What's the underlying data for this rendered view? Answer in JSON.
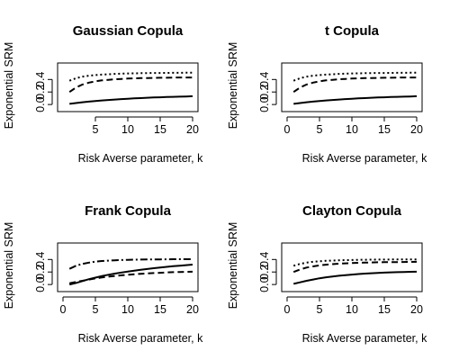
{
  "chart_data": [
    {
      "type": "line",
      "title": "Gaussian Copula",
      "xlabel": "Risk Averse parameter, k",
      "ylabel": "Exponential SRM",
      "xlim": [
        1,
        20
      ],
      "ylim": [
        0,
        0.6
      ],
      "xticks": [
        "5",
        "10",
        "15",
        "20"
      ],
      "yticks": [
        "0.0",
        "0.2",
        "0.4"
      ],
      "grid": false,
      "series": [
        {
          "style": "solid",
          "x": [
            1,
            2,
            3,
            4,
            5,
            6,
            7,
            8,
            9,
            10,
            11,
            12,
            13,
            14,
            15,
            16,
            17,
            18,
            19,
            20
          ],
          "values": [
            0.01,
            0.024,
            0.036,
            0.047,
            0.056,
            0.065,
            0.073,
            0.08,
            0.087,
            0.093,
            0.098,
            0.103,
            0.108,
            0.112,
            0.116,
            0.12,
            0.123,
            0.126,
            0.129,
            0.132
          ]
        },
        {
          "style": "dashed",
          "x": [
            1,
            2,
            3,
            4,
            5,
            6,
            7,
            8,
            9,
            10,
            11,
            12,
            13,
            14,
            15,
            16,
            17,
            18,
            19,
            20
          ],
          "values": [
            0.2,
            0.27,
            0.32,
            0.35,
            0.37,
            0.385,
            0.395,
            0.403,
            0.409,
            0.414,
            0.418,
            0.421,
            0.423,
            0.425,
            0.427,
            0.428,
            0.43,
            0.431,
            0.432,
            0.432
          ]
        },
        {
          "style": "dotted",
          "x": [
            1,
            2,
            3,
            4,
            5,
            6,
            7,
            8,
            9,
            10,
            11,
            12,
            13,
            14,
            15,
            16,
            17,
            18,
            19,
            20
          ],
          "values": [
            0.38,
            0.42,
            0.445,
            0.46,
            0.47,
            0.478,
            0.484,
            0.489,
            0.493,
            0.496,
            0.498,
            0.5,
            0.502,
            0.503,
            0.504,
            0.505,
            0.506,
            0.507,
            0.508,
            0.508
          ]
        }
      ]
    },
    {
      "type": "line",
      "title": "t Copula",
      "xlabel": "Risk Averse parameter, k",
      "ylabel": "Exponential SRM",
      "xlim": [
        0,
        20
      ],
      "ylim": [
        0,
        0.6
      ],
      "xticks": [
        "0",
        "5",
        "10",
        "15",
        "20"
      ],
      "yticks": [
        "0.0",
        "0.2",
        "0.4"
      ],
      "grid": false,
      "series": [
        {
          "style": "solid",
          "x": [
            1,
            2,
            3,
            4,
            5,
            6,
            7,
            8,
            9,
            10,
            11,
            12,
            13,
            14,
            15,
            16,
            17,
            18,
            19,
            20
          ],
          "values": [
            0.01,
            0.024,
            0.036,
            0.047,
            0.056,
            0.065,
            0.073,
            0.08,
            0.087,
            0.093,
            0.098,
            0.103,
            0.108,
            0.112,
            0.116,
            0.12,
            0.123,
            0.126,
            0.129,
            0.132
          ]
        },
        {
          "style": "dashed",
          "x": [
            1,
            2,
            3,
            4,
            5,
            6,
            7,
            8,
            9,
            10,
            11,
            12,
            13,
            14,
            15,
            16,
            17,
            18,
            19,
            20
          ],
          "values": [
            0.2,
            0.27,
            0.32,
            0.35,
            0.37,
            0.385,
            0.395,
            0.403,
            0.409,
            0.414,
            0.418,
            0.421,
            0.423,
            0.425,
            0.427,
            0.428,
            0.43,
            0.431,
            0.432,
            0.432
          ]
        },
        {
          "style": "dotted",
          "x": [
            1,
            2,
            3,
            4,
            5,
            6,
            7,
            8,
            9,
            10,
            11,
            12,
            13,
            14,
            15,
            16,
            17,
            18,
            19,
            20
          ],
          "values": [
            0.38,
            0.42,
            0.445,
            0.46,
            0.47,
            0.478,
            0.484,
            0.489,
            0.493,
            0.496,
            0.498,
            0.5,
            0.502,
            0.503,
            0.504,
            0.505,
            0.506,
            0.507,
            0.508,
            0.508
          ]
        }
      ]
    },
    {
      "type": "line",
      "title": "Frank Copula",
      "xlabel": "Risk Averse parameter, k",
      "ylabel": "Exponential SRM",
      "xlim": [
        0,
        20
      ],
      "ylim": [
        0,
        0.6
      ],
      "xticks": [
        "0",
        "5",
        "10",
        "15",
        "20"
      ],
      "yticks": [
        "0.0",
        "0.2",
        "0.4"
      ],
      "grid": false,
      "series": [
        {
          "style": "solid",
          "x": [
            1,
            2,
            3,
            4,
            5,
            6,
            7,
            8,
            9,
            10,
            11,
            12,
            13,
            14,
            15,
            16,
            17,
            18,
            19,
            20
          ],
          "values": [
            0.0,
            0.025,
            0.055,
            0.085,
            0.11,
            0.135,
            0.155,
            0.175,
            0.192,
            0.208,
            0.222,
            0.235,
            0.248,
            0.26,
            0.271,
            0.282,
            0.292,
            0.301,
            0.31,
            0.318
          ]
        },
        {
          "style": "dashed",
          "x": [
            1,
            2,
            3,
            4,
            5,
            6,
            7,
            8,
            9,
            10,
            11,
            12,
            13,
            14,
            15,
            16,
            17,
            18,
            19,
            20
          ],
          "values": [
            0.02,
            0.04,
            0.06,
            0.08,
            0.097,
            0.112,
            0.125,
            0.137,
            0.147,
            0.156,
            0.164,
            0.171,
            0.177,
            0.183,
            0.188,
            0.193,
            0.197,
            0.2,
            0.203,
            0.205
          ]
        },
        {
          "style": "dashdot",
          "x": [
            1,
            2,
            3,
            4,
            5,
            6,
            7,
            8,
            9,
            10,
            11,
            12,
            13,
            14,
            15,
            16,
            17,
            18,
            19,
            20
          ],
          "values": [
            0.25,
            0.3,
            0.33,
            0.35,
            0.365,
            0.375,
            0.382,
            0.387,
            0.391,
            0.394,
            0.397,
            0.399,
            0.4,
            0.401,
            0.402,
            0.403,
            0.404,
            0.404,
            0.405,
            0.405
          ]
        }
      ]
    },
    {
      "type": "line",
      "title": "Clayton Copula",
      "xlabel": "Risk Averse parameter, k",
      "ylabel": "Exponential SRM",
      "xlim": [
        0,
        20
      ],
      "ylim": [
        0,
        0.6
      ],
      "xticks": [
        "0",
        "5",
        "10",
        "15",
        "20"
      ],
      "yticks": [
        "0.0",
        "0.2",
        "0.4"
      ],
      "grid": false,
      "series": [
        {
          "style": "solid",
          "x": [
            1,
            2,
            3,
            4,
            5,
            6,
            7,
            8,
            9,
            10,
            11,
            12,
            13,
            14,
            15,
            16,
            17,
            18,
            19,
            20
          ],
          "values": [
            0.01,
            0.035,
            0.06,
            0.08,
            0.1,
            0.115,
            0.128,
            0.14,
            0.15,
            0.159,
            0.167,
            0.174,
            0.18,
            0.185,
            0.19,
            0.194,
            0.197,
            0.2,
            0.203,
            0.205
          ]
        },
        {
          "style": "dashed",
          "x": [
            1,
            2,
            3,
            4,
            5,
            6,
            7,
            8,
            9,
            10,
            11,
            12,
            13,
            14,
            15,
            16,
            17,
            18,
            19,
            20
          ],
          "values": [
            0.2,
            0.24,
            0.27,
            0.29,
            0.305,
            0.316,
            0.325,
            0.332,
            0.338,
            0.343,
            0.347,
            0.35,
            0.353,
            0.355,
            0.357,
            0.358,
            0.359,
            0.36,
            0.361,
            0.362
          ]
        },
        {
          "style": "dotted",
          "x": [
            1,
            2,
            3,
            4,
            5,
            6,
            7,
            8,
            9,
            10,
            11,
            12,
            13,
            14,
            15,
            16,
            17,
            18,
            19,
            20
          ],
          "values": [
            0.3,
            0.33,
            0.35,
            0.362,
            0.371,
            0.378,
            0.383,
            0.387,
            0.39,
            0.392,
            0.394,
            0.396,
            0.397,
            0.398,
            0.399,
            0.4,
            0.4,
            0.401,
            0.401,
            0.402
          ]
        }
      ]
    }
  ]
}
